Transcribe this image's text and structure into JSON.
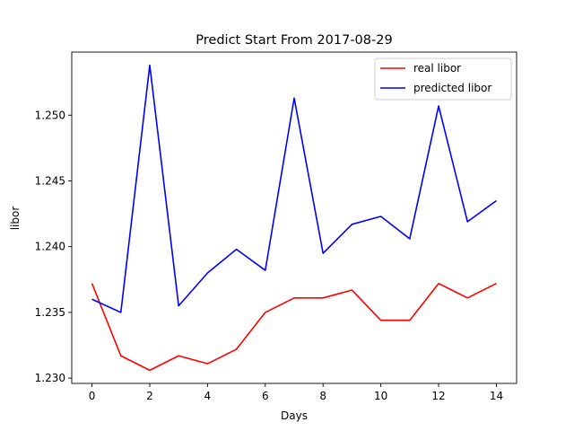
{
  "chart_data": {
    "type": "line",
    "title": "Predict Start From 2017-08-29",
    "xlabel": "Days",
    "ylabel": "libor",
    "x": [
      0,
      1,
      2,
      3,
      4,
      5,
      6,
      7,
      8,
      9,
      10,
      11,
      12,
      13,
      14
    ],
    "xlim": [
      -0.7,
      14.7
    ],
    "ylim": [
      1.2296,
      1.2548
    ],
    "xticks": [
      0,
      2,
      4,
      6,
      8,
      10,
      12,
      14
    ],
    "yticks": [
      1.23,
      1.235,
      1.24,
      1.245,
      1.25
    ],
    "ytick_labels": [
      "1.230",
      "1.235",
      "1.240",
      "1.245",
      "1.250"
    ],
    "grid": false,
    "legend_position": "top-right",
    "series": [
      {
        "name": "real libor",
        "color": "#ff0000",
        "values": [
          1.2372,
          1.2317,
          1.2306,
          1.2317,
          1.2311,
          1.2322,
          1.235,
          1.2361,
          1.2361,
          1.2367,
          1.2344,
          1.2344,
          1.2372,
          1.2361,
          1.2372
        ]
      },
      {
        "name": "predicted libor",
        "color": "#0000ff",
        "values": [
          1.236,
          1.235,
          1.2538,
          1.2355,
          1.238,
          1.2398,
          1.2382,
          1.2513,
          1.2395,
          1.2417,
          1.2423,
          1.2406,
          1.2507,
          1.2419,
          1.2435
        ]
      }
    ]
  }
}
